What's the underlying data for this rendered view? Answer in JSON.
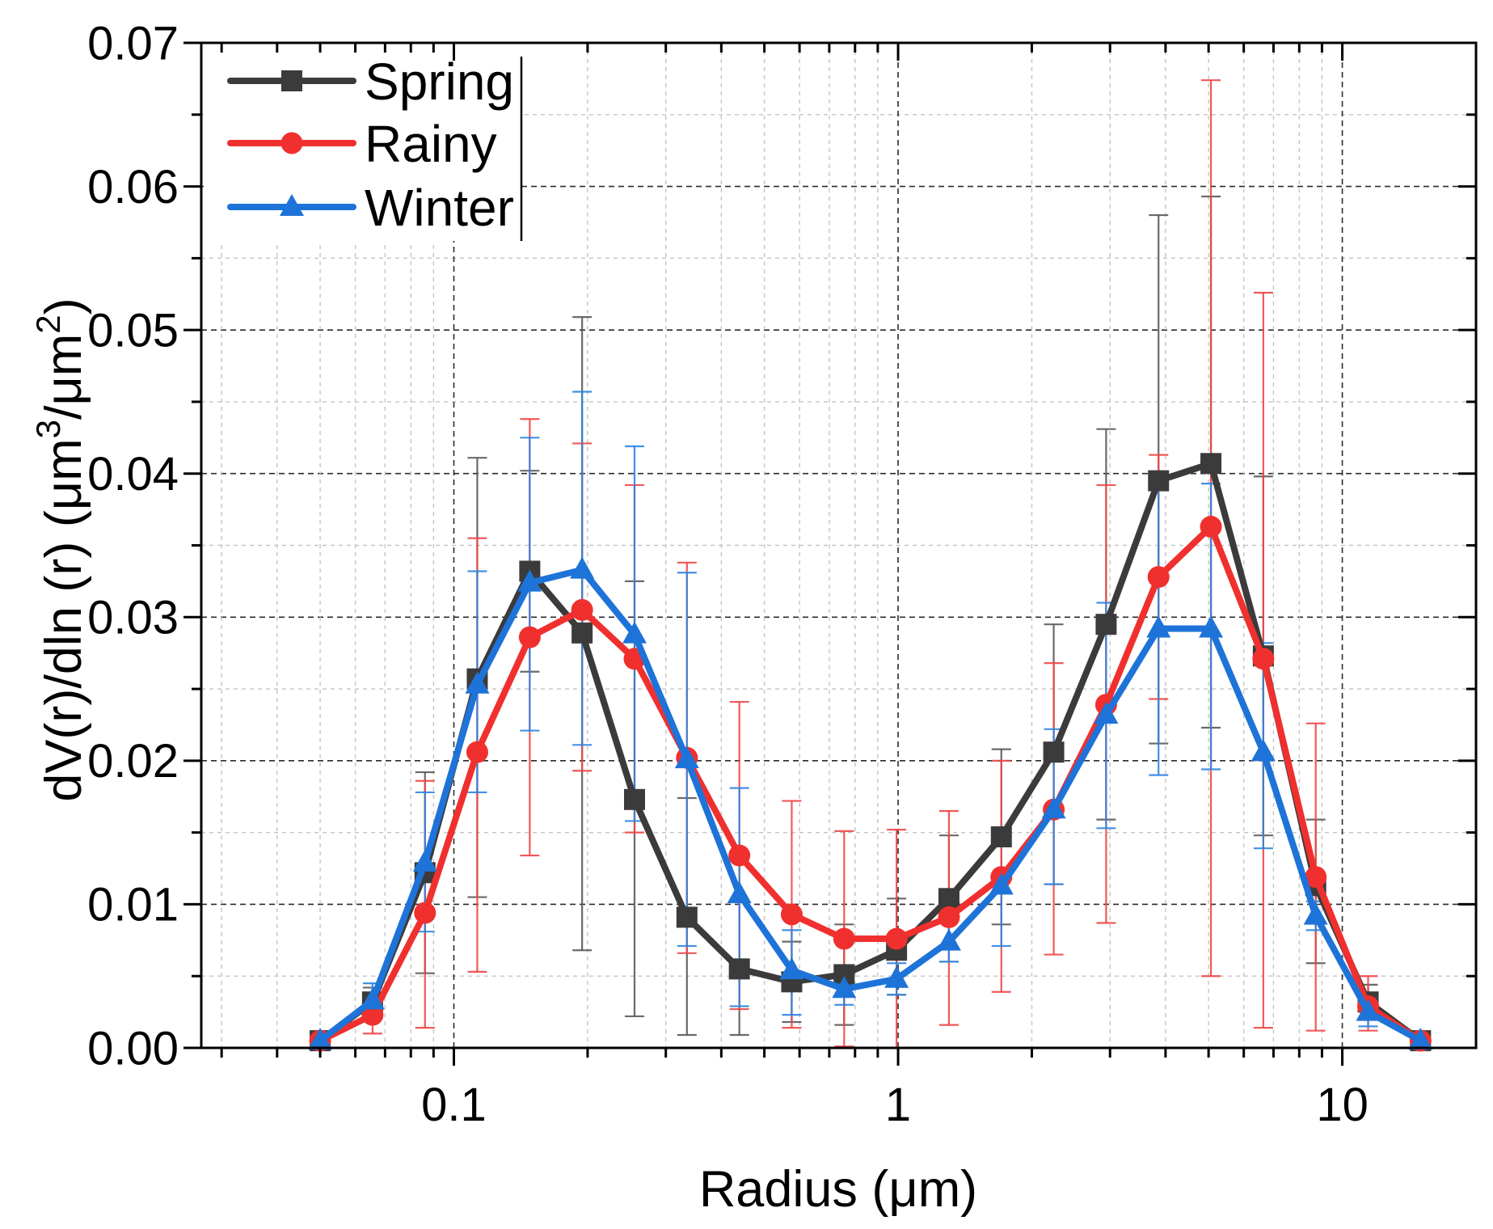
{
  "chart_data": {
    "type": "line",
    "title": "",
    "xlabel": "Radius (μm)",
    "ylabel_parts": [
      "dV(r)/dln (r) (μm",
      "3",
      "/μm",
      "2",
      ")"
    ],
    "xscale": "log",
    "xlim": [
      0.027,
      20
    ],
    "ylim": [
      0,
      0.07
    ],
    "x_ticks": [
      "0.1",
      "1",
      "10"
    ],
    "y_ticks": [
      "0.00",
      "0.01",
      "0.02",
      "0.03",
      "0.04",
      "0.05",
      "0.06",
      "0.07"
    ],
    "grid": true,
    "legend_position": "top-left",
    "x": [
      0.05,
      0.0656,
      0.0861,
      0.1129,
      0.1482,
      0.1944,
      0.2551,
      0.3347,
      0.4392,
      0.5762,
      0.7561,
      0.992,
      1.3016,
      1.7078,
      2.2407,
      2.94,
      3.8575,
      5.0613,
      6.6407,
      8.7131,
      11.4323,
      15.0
    ],
    "series": [
      {
        "name": "Spring",
        "marker": "square",
        "color": "#3b3b3b",
        "error_color": "#5a5a5a",
        "values": [
          0.0005,
          0.0032,
          0.0122,
          0.0257,
          0.0332,
          0.0289,
          0.0173,
          0.0091,
          0.0055,
          0.0046,
          0.0051,
          0.0068,
          0.0104,
          0.0147,
          0.0206,
          0.0295,
          0.0395,
          0.0407,
          0.0273,
          0.0113,
          0.0032,
          0.0005
        ],
        "error_lower_bound": [
          0.0003,
          0.0022,
          0.0052,
          0.0105,
          0.0262,
          0.0068,
          0.0022,
          0.0009,
          0.0009,
          0.0018,
          0.0016,
          0.0037,
          0.006,
          0.0086,
          0.0114,
          0.0159,
          0.0212,
          0.0223,
          0.0148,
          0.0059,
          0.002,
          0.0003
        ],
        "error_upper_bound": [
          0.0007,
          0.0042,
          0.0192,
          0.0411,
          0.0402,
          0.0509,
          0.0325,
          0.0174,
          0.0102,
          0.0074,
          0.0086,
          0.0104,
          0.0148,
          0.0208,
          0.0295,
          0.0431,
          0.058,
          0.0593,
          0.0398,
          0.0159,
          0.0044,
          0.0007
        ]
      },
      {
        "name": "Rainy",
        "marker": "circle",
        "color": "#f0302e",
        "error_color": "#f04646",
        "values": [
          0.0005,
          0.0023,
          0.0094,
          0.0206,
          0.0286,
          0.0305,
          0.0271,
          0.0202,
          0.0134,
          0.0093,
          0.0076,
          0.0076,
          0.0091,
          0.0119,
          0.0166,
          0.0239,
          0.0328,
          0.0363,
          0.0271,
          0.0119,
          0.0029,
          0.0005
        ],
        "error_lower_bound": [
          0.0003,
          0.001,
          0.0014,
          0.0053,
          0.0134,
          0.0193,
          0.015,
          0.0066,
          0.0027,
          0.0014,
          0.0001,
          0.0,
          0.0016,
          0.0039,
          0.0065,
          0.0087,
          0.0243,
          0.005,
          0.0014,
          0.0012,
          0.0012,
          0.0003
        ],
        "error_upper_bound": [
          0.0007,
          0.0038,
          0.0186,
          0.0355,
          0.0438,
          0.0421,
          0.0392,
          0.0338,
          0.0241,
          0.0172,
          0.0151,
          0.0152,
          0.0165,
          0.02,
          0.0268,
          0.0392,
          0.0413,
          0.0674,
          0.0526,
          0.0226,
          0.005,
          0.0007
        ]
      },
      {
        "name": "Winter",
        "marker": "triangle",
        "color": "#1e73d8",
        "error_color": "#2f84e0",
        "values": [
          0.0005,
          0.0033,
          0.0129,
          0.0253,
          0.0324,
          0.0333,
          0.0288,
          0.0201,
          0.0107,
          0.0054,
          0.0041,
          0.0048,
          0.0074,
          0.0113,
          0.0166,
          0.0232,
          0.0292,
          0.0292,
          0.0206,
          0.0092,
          0.0025,
          0.0005
        ],
        "error_lower_bound": [
          0.0003,
          0.0021,
          0.0081,
          0.0178,
          0.0221,
          0.0211,
          0.0158,
          0.0071,
          0.0029,
          0.0023,
          0.003,
          0.0037,
          0.006,
          0.0071,
          0.0114,
          0.0153,
          0.019,
          0.0194,
          0.0139,
          0.0082,
          0.0015,
          0.0003
        ],
        "error_upper_bound": [
          0.0007,
          0.0045,
          0.0178,
          0.0332,
          0.0425,
          0.0457,
          0.0419,
          0.0331,
          0.0181,
          0.0082,
          0.0052,
          0.0059,
          0.0088,
          0.0117,
          0.0222,
          0.031,
          0.0392,
          0.0393,
          0.0282,
          0.0102,
          0.0035,
          0.0007
        ]
      }
    ]
  }
}
